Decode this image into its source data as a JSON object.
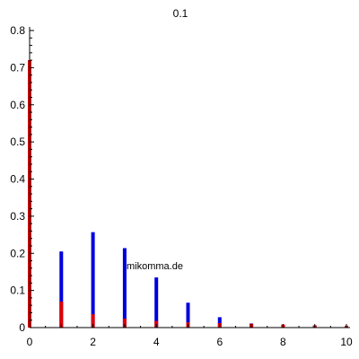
{
  "chart_data": {
    "type": "bar",
    "title": "0.1",
    "xlabel": "",
    "ylabel": "",
    "xlim": [
      0,
      10
    ],
    "ylim": [
      0,
      0.8
    ],
    "x_ticks": [
      "0",
      "2",
      "4",
      "6",
      "8",
      "10"
    ],
    "y_ticks": [
      "0",
      "0.1",
      "0.2",
      "0.3",
      "0.4",
      "0.5",
      "0.6",
      "0.7",
      "0.8"
    ],
    "grid": false,
    "series": [
      {
        "color": "#0000dd",
        "x": [
          0,
          1,
          2,
          3,
          4,
          5,
          6,
          7,
          8,
          9,
          10
        ],
        "values": [
          0.72,
          0.205,
          0.257,
          0.214,
          0.135,
          0.067,
          0.028,
          0.011,
          0.008,
          0.006,
          0.004
        ]
      },
      {
        "color": "#dd0000",
        "x": [
          0,
          1,
          2,
          3,
          4,
          5,
          6,
          7,
          8,
          9,
          10
        ],
        "values": [
          0.72,
          0.07,
          0.036,
          0.024,
          0.018,
          0.014,
          0.012,
          0.01,
          0.008,
          0.006,
          0.005
        ]
      }
    ]
  },
  "watermark": "mikomma.de"
}
